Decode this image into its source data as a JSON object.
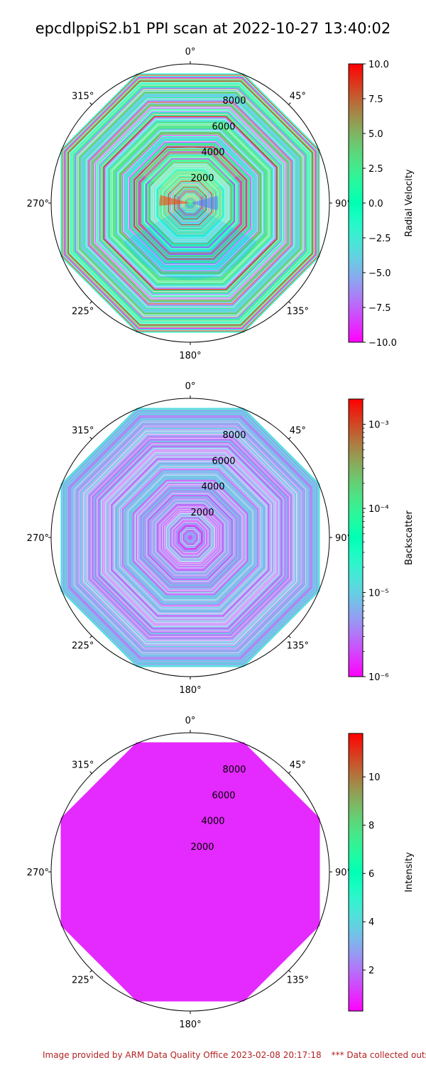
{
  "title": "epcdlppiS2.b1 PPI scan at 2022-10-27 13:40:02",
  "footer": {
    "credit": "Image provided by ARM Data Quality Office 2023-02-08 20:17:18",
    "notice": "*** Data collected outside"
  },
  "chart_data": [
    {
      "type": "polar-heatmap",
      "angle_ticks": [
        "0°",
        "45°",
        "90°",
        "135°",
        "180°",
        "225°",
        "270°",
        "315°"
      ],
      "radial_ticks": [
        "2000",
        "4000",
        "6000",
        "8000"
      ],
      "radial_max": 10000,
      "colorbar": {
        "label": "Radial Velocity",
        "scale": "linear",
        "range": [
          -10.0,
          10.0
        ],
        "ticks": [
          "10.0",
          "7.5",
          "5.0",
          "2.5",
          "0.0",
          "−2.5",
          "−5.0",
          "−7.5",
          "−10.0"
        ],
        "colormap": "rainbow"
      }
    },
    {
      "type": "polar-heatmap",
      "angle_ticks": [
        "0°",
        "45°",
        "90°",
        "135°",
        "180°",
        "225°",
        "270°",
        "315°"
      ],
      "radial_ticks": [
        "2000",
        "4000",
        "6000",
        "8000"
      ],
      "radial_max": 10000,
      "colorbar": {
        "label": "Backscatter",
        "scale": "log",
        "range": [
          1e-06,
          0.002
        ],
        "ticks": [
          "10⁻³",
          "10⁻⁴",
          "10⁻⁵",
          "10⁻⁶"
        ],
        "colormap": "rainbow"
      }
    },
    {
      "type": "polar-heatmap",
      "angle_ticks": [
        "0°",
        "45°",
        "90°",
        "135°",
        "180°",
        "225°",
        "270°",
        "315°"
      ],
      "radial_ticks": [
        "2000",
        "4000",
        "6000",
        "8000"
      ],
      "radial_max": 10000,
      "colorbar": {
        "label": "Intensity",
        "scale": "linear",
        "range": [
          0.3,
          11.8
        ],
        "ticks": [
          "10",
          "8",
          "6",
          "4",
          "2"
        ],
        "colormap": "rainbow"
      },
      "fill_value": 0.9
    }
  ]
}
